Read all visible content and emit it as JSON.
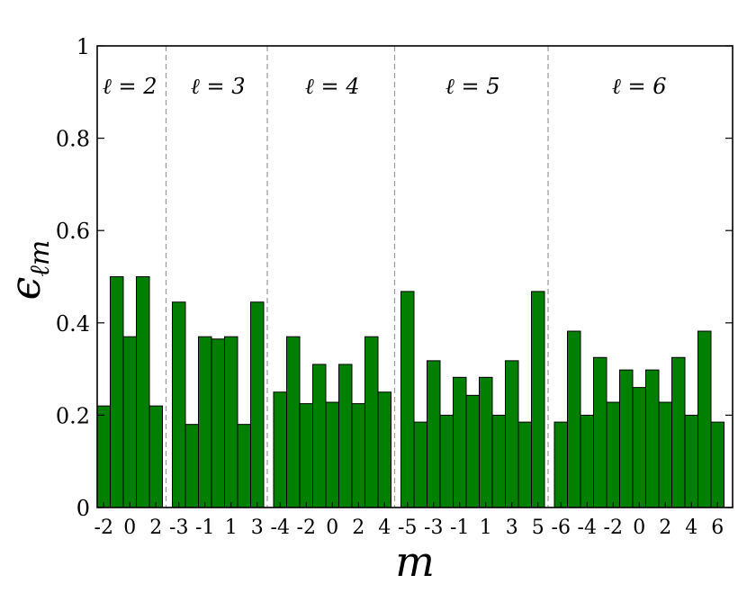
{
  "chart_data": {
    "type": "bar",
    "ylabel": "ϵ",
    "ylabel_subscript": "ℓm",
    "xlabel": "m",
    "ylim": [
      0,
      1
    ],
    "yticks": [
      "0",
      "0.2",
      "0.4",
      "0.6",
      "0.8",
      "1"
    ],
    "bar_color": "#007f00",
    "separator_style": "dashed gray",
    "groups": [
      {
        "label": "ℓ = 2",
        "m": [
          -2,
          -1,
          0,
          1,
          2
        ],
        "values": [
          0.22,
          0.5,
          0.37,
          0.5,
          0.22
        ],
        "tick_labels": [
          "-2",
          "0",
          "2"
        ]
      },
      {
        "label": "ℓ = 3",
        "m": [
          -3,
          -2,
          -1,
          0,
          1,
          2,
          3
        ],
        "values": [
          0.445,
          0.18,
          0.37,
          0.365,
          0.37,
          0.18,
          0.445
        ],
        "tick_labels": [
          "-3",
          "-1",
          "1",
          "3"
        ]
      },
      {
        "label": "ℓ = 4",
        "m": [
          -4,
          -3,
          -2,
          -1,
          0,
          1,
          2,
          3,
          4
        ],
        "values": [
          0.25,
          0.37,
          0.225,
          0.31,
          0.228,
          0.31,
          0.225,
          0.37,
          0.25
        ],
        "tick_labels": [
          "-4",
          "-2",
          "0",
          "2",
          "4"
        ]
      },
      {
        "label": "ℓ = 5",
        "m": [
          -5,
          -4,
          -3,
          -2,
          -1,
          0,
          1,
          2,
          3,
          4,
          5
        ],
        "values": [
          0.468,
          0.185,
          0.318,
          0.2,
          0.282,
          0.243,
          0.282,
          0.2,
          0.318,
          0.185,
          0.468
        ],
        "tick_labels": [
          "-5",
          "-3",
          "-1",
          "1",
          "3",
          "5"
        ]
      },
      {
        "label": "ℓ = 6",
        "m": [
          -6,
          -5,
          -4,
          -3,
          -2,
          -1,
          0,
          1,
          2,
          3,
          4,
          5,
          6
        ],
        "values": [
          0.185,
          0.382,
          0.2,
          0.325,
          0.228,
          0.298,
          0.26,
          0.298,
          0.228,
          0.325,
          0.2,
          0.382,
          0.185
        ],
        "tick_labels": [
          "-6",
          "-4",
          "-2",
          "0",
          "2",
          "4",
          "6"
        ]
      }
    ]
  }
}
